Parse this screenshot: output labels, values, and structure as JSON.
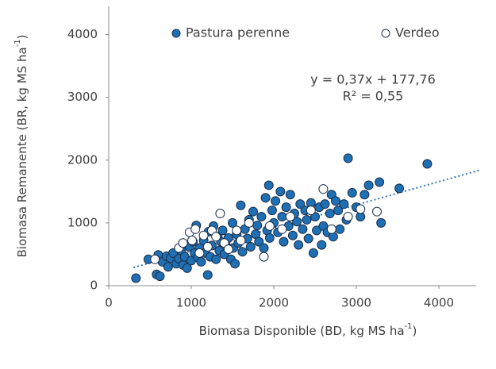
{
  "chart_data": {
    "type": "scatter",
    "xlabel": "Biomasa Disponible (BD, kg MS ha",
    "xlabel_sup": "-1",
    "xlabel_end": ")",
    "ylabel": "Biomasa Remanente (BR, kg MS ha",
    "ylabel_sup": "-1",
    "ylabel_end": ")",
    "xlim": [
      0,
      4500
    ],
    "xticks": [
      0,
      1000,
      2000,
      3000,
      4000
    ],
    "ylim": [
      0,
      4450
    ],
    "yticks": [
      0,
      1000,
      2000,
      3000,
      4000
    ],
    "grid": false,
    "series": [
      {
        "name": "Pastura perenne",
        "color": "#1f6fb4",
        "x": [
          330,
          480,
          580,
          600,
          620,
          650,
          700,
          720,
          750,
          780,
          820,
          850,
          880,
          900,
          920,
          950,
          980,
          1000,
          1020,
          1040,
          1060,
          1080,
          1100,
          1120,
          1150,
          1170,
          1200,
          1210,
          1230,
          1250,
          1270,
          1300,
          1320,
          1340,
          1360,
          1380,
          1400,
          1420,
          1450,
          1480,
          1500,
          1510,
          1530,
          1550,
          1570,
          1600,
          1620,
          1650,
          1680,
          1700,
          1720,
          1750,
          1780,
          1800,
          1820,
          1850,
          1880,
          1900,
          1920,
          1940,
          1950,
          1980,
          2000,
          2020,
          2050,
          2080,
          2100,
          2120,
          2150,
          2180,
          2200,
          2230,
          2250,
          2280,
          2300,
          2320,
          2350,
          2380,
          2400,
          2420,
          2450,
          2480,
          2500,
          2520,
          2550,
          2580,
          2600,
          2620,
          2650,
          2680,
          2700,
          2720,
          2750,
          2780,
          2800,
          2850,
          2880,
          2900,
          2950,
          3000,
          3050,
          3100,
          3150,
          3280,
          3300,
          3520,
          3860
        ],
        "values": [
          120,
          420,
          180,
          490,
          150,
          380,
          470,
          300,
          440,
          520,
          350,
          430,
          560,
          330,
          460,
          280,
          620,
          400,
          700,
          520,
          960,
          450,
          600,
          380,
          720,
          520,
          170,
          860,
          460,
          640,
          950,
          420,
          780,
          560,
          700,
          880,
          500,
          640,
          760,
          420,
          1000,
          600,
          350,
          820,
          680,
          1280,
          540,
          900,
          750,
          1050,
          620,
          1180,
          820,
          960,
          700,
          1100,
          600,
          1400,
          880,
          1600,
          760,
          1200,
          1000,
          1350,
          850,
          1500,
          1100,
          700,
          1250,
          950,
          1450,
          800,
          1150,
          1020,
          650,
          1300,
          900,
          1200,
          1050,
          750,
          1320,
          520,
          1100,
          880,
          1250,
          650,
          950,
          1300,
          850,
          1150,
          1450,
          780,
          1350,
          1200,
          900,
          1300,
          1050,
          2030,
          1480,
          1250,
          1100,
          1450,
          1600,
          1650,
          1000,
          1550,
          1940
        ]
      },
      {
        "name": "Verdeo",
        "color": "#ffffff",
        "x": [
          560,
          850,
          900,
          980,
          1010,
          1050,
          1100,
          1150,
          1200,
          1250,
          1300,
          1350,
          1400,
          1450,
          1550,
          1600,
          1700,
          1880,
          1950,
          2100,
          2200,
          2450,
          2600,
          2700,
          2900,
          3050,
          3250
        ],
        "values": [
          420,
          600,
          680,
          850,
          720,
          900,
          520,
          800,
          620,
          880,
          780,
          1150,
          680,
          580,
          880,
          720,
          1000,
          460,
          950,
          900,
          1100,
          1200,
          1540,
          900,
          1100,
          1220,
          1180
        ]
      }
    ],
    "trendline": {
      "slope": 0.37,
      "intercept": 177.76,
      "x_range": [
        300,
        4500
      ],
      "color": "#2e75b6"
    },
    "equation": "y = 0,37x + 177,76",
    "r2": "R² = 0,55"
  }
}
